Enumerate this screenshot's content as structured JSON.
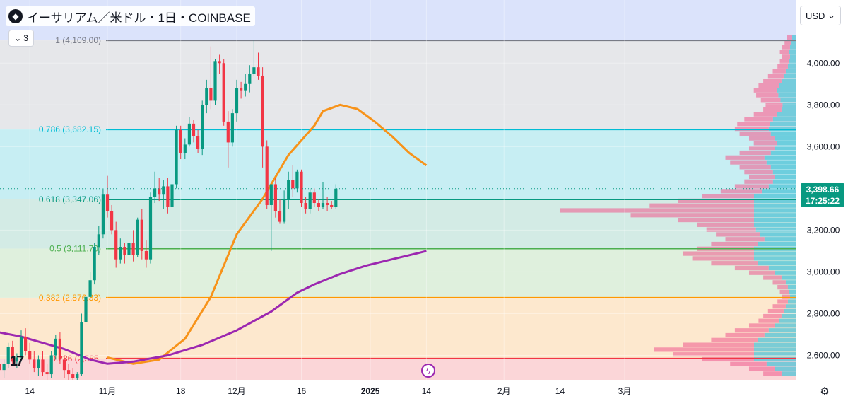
{
  "header": {
    "title": "イーサリアム／米ドル・1日・COINBASE",
    "indicator_count": "3",
    "currency": "USD"
  },
  "price_tag": {
    "price": "3,398.66",
    "countdown": "17:25:22",
    "color": "#089981"
  },
  "icons": {
    "logo": "tradingview-logo",
    "flash": "flash-icon",
    "settings": "gear-icon",
    "eth": "ethereum-icon"
  },
  "colors": {
    "up": "#089981",
    "down": "#f23645",
    "ema_fast": "#f7931a",
    "ema_slow": "#9c27b0"
  },
  "chart_data": {
    "type": "candlestick",
    "y_axis": {
      "range": [
        2500,
        4150
      ],
      "ticks": [
        {
          "value": 4000,
          "label": "4,000.00"
        },
        {
          "value": 3800,
          "label": "3,800.00"
        },
        {
          "value": 3600,
          "label": "3,600.00"
        },
        {
          "value": 3200,
          "label": "3,200.00"
        },
        {
          "value": 3000,
          "label": "3,000.00"
        },
        {
          "value": 2800,
          "label": "2,800.00"
        },
        {
          "value": 2600,
          "label": "2,600.00"
        }
      ]
    },
    "x_axis": {
      "ticks": [
        {
          "day": -18,
          "label": "14"
        },
        {
          "day": 0,
          "label": "11月"
        },
        {
          "day": 17,
          "label": "18"
        },
        {
          "day": 30,
          "label": "12月"
        },
        {
          "day": 45,
          "label": "16"
        },
        {
          "day": 61,
          "label": "2025",
          "bold": true
        },
        {
          "day": 74,
          "label": "14"
        },
        {
          "day": 92,
          "label": "2月"
        },
        {
          "day": 105,
          "label": "14"
        },
        {
          "day": 120,
          "label": "3月"
        }
      ],
      "last_day": 134
    },
    "fibonacci": [
      {
        "ratio": "1",
        "label": "1 (4,109.00)",
        "value": 4109,
        "color": "#787b86",
        "fill": "#e6e7ea"
      },
      {
        "ratio": "0.786",
        "label": "0.786 (3,682.15)",
        "value": 3682.15,
        "color": "#00bcd4",
        "fill": "#c7eef3"
      },
      {
        "ratio": "0.618",
        "label": "0.618 (3,347.06)",
        "value": 3347.06,
        "color": "#089981",
        "fill": "#d3ebe5"
      },
      {
        "ratio": "0.5",
        "label": "0.5 (3,111.70)",
        "value": 3111.7,
        "color": "#4caf50",
        "fill": "#dff0dd"
      },
      {
        "ratio": "0.382",
        "label": "0.382 (2,876.33)",
        "value": 2876.33,
        "color": "#ff9800",
        "fill": "#fde8ce"
      },
      {
        "ratio": "0.236",
        "label": "0.236 (2,585.",
        "value": 2585,
        "color": "#f23645",
        "fill": "#fbd6d8"
      }
    ],
    "series": [
      {
        "name": "ETH/USD",
        "candles": [
          [
            2580,
            2620,
            2520,
            2560
          ],
          [
            2560,
            2600,
            2510,
            2530
          ],
          [
            2530,
            2580,
            2490,
            2560
          ],
          [
            2560,
            2660,
            2540,
            2640
          ],
          [
            2640,
            2670,
            2550,
            2570
          ],
          [
            2570,
            2610,
            2540,
            2590
          ],
          [
            2590,
            2720,
            2570,
            2690
          ],
          [
            2690,
            2730,
            2600,
            2620
          ],
          [
            2620,
            2660,
            2560,
            2580
          ],
          [
            2580,
            2620,
            2520,
            2540
          ],
          [
            2540,
            2600,
            2500,
            2580
          ],
          [
            2580,
            2620,
            2500,
            2520
          ],
          [
            2520,
            2560,
            2470,
            2510
          ],
          [
            2510,
            2620,
            2490,
            2600
          ],
          [
            2600,
            2700,
            2580,
            2680
          ],
          [
            2680,
            2710,
            2560,
            2580
          ],
          [
            2580,
            2600,
            2490,
            2530
          ],
          [
            2530,
            2560,
            2480,
            2510
          ],
          [
            2510,
            2540,
            2440,
            2490
          ],
          [
            2490,
            2520,
            2470,
            2510
          ],
          [
            2510,
            2800,
            2500,
            2760
          ],
          [
            2760,
            2900,
            2740,
            2880
          ],
          [
            2880,
            3000,
            2860,
            2960
          ],
          [
            2960,
            3140,
            2940,
            3120
          ],
          [
            3120,
            3220,
            3080,
            3180
          ],
          [
            3180,
            3400,
            3160,
            3370
          ],
          [
            3370,
            3460,
            3260,
            3290
          ],
          [
            3290,
            3320,
            3180,
            3200
          ],
          [
            3200,
            3240,
            3020,
            3060
          ],
          [
            3060,
            3160,
            3040,
            3120
          ],
          [
            3120,
            3140,
            3040,
            3080
          ],
          [
            3080,
            3180,
            3060,
            3140
          ],
          [
            3140,
            3200,
            3050,
            3080
          ],
          [
            3080,
            3260,
            3070,
            3250
          ],
          [
            3250,
            3300,
            3060,
            3100
          ],
          [
            3100,
            3150,
            3020,
            3060
          ],
          [
            3060,
            3380,
            3040,
            3360
          ],
          [
            3360,
            3480,
            3330,
            3400
          ],
          [
            3400,
            3450,
            3340,
            3370
          ],
          [
            3370,
            3440,
            3300,
            3410
          ],
          [
            3410,
            3450,
            3280,
            3310
          ],
          [
            3310,
            3440,
            3250,
            3420
          ],
          [
            3420,
            3700,
            3400,
            3680
          ],
          [
            3680,
            3700,
            3540,
            3570
          ],
          [
            3570,
            3640,
            3540,
            3610
          ],
          [
            3610,
            3740,
            3600,
            3710
          ],
          [
            3710,
            3730,
            3620,
            3650
          ],
          [
            3650,
            3680,
            3570,
            3590
          ],
          [
            3590,
            3820,
            3560,
            3800
          ],
          [
            3800,
            3920,
            3760,
            3880
          ],
          [
            3880,
            4080,
            3780,
            3820
          ],
          [
            3820,
            4020,
            3800,
            4010
          ],
          [
            4010,
            4040,
            3950,
            4000
          ],
          [
            4000,
            4020,
            3700,
            3720
          ],
          [
            3720,
            3770,
            3500,
            3620
          ],
          [
            3620,
            3780,
            3600,
            3760
          ],
          [
            3760,
            3920,
            3720,
            3880
          ],
          [
            3880,
            3910,
            3830,
            3870
          ],
          [
            3870,
            3950,
            3840,
            3900
          ],
          [
            3900,
            3990,
            3860,
            3950
          ],
          [
            3950,
            4109,
            3940,
            3980
          ],
          [
            3980,
            4050,
            3920,
            3940
          ],
          [
            3940,
            3980,
            3500,
            3600
          ],
          [
            3600,
            3630,
            3300,
            3320
          ],
          [
            3320,
            3420,
            3100,
            3420
          ],
          [
            3420,
            3450,
            3260,
            3290
          ],
          [
            3290,
            3350,
            3230,
            3240
          ],
          [
            3240,
            3390,
            3230,
            3350
          ],
          [
            3350,
            3480,
            3300,
            3440
          ],
          [
            3440,
            3510,
            3360,
            3400
          ],
          [
            3400,
            3490,
            3380,
            3480
          ],
          [
            3480,
            3490,
            3310,
            3330
          ],
          [
            3330,
            3360,
            3280,
            3300
          ],
          [
            3300,
            3400,
            3280,
            3380
          ],
          [
            3380,
            3400,
            3310,
            3330
          ],
          [
            3330,
            3350,
            3290,
            3310
          ],
          [
            3310,
            3430,
            3300,
            3330
          ],
          [
            3330,
            3360,
            3290,
            3320
          ],
          [
            3320,
            3340,
            3300,
            3310
          ],
          [
            3310,
            3420,
            3300,
            3398.66
          ]
        ]
      },
      {
        "name": "EMA fast",
        "values": [
          [
            0,
            2590
          ],
          [
            6,
            2560
          ],
          [
            12,
            2580
          ],
          [
            18,
            2680
          ],
          [
            24,
            2880
          ],
          [
            30,
            3180
          ],
          [
            36,
            3350
          ],
          [
            42,
            3560
          ],
          [
            48,
            3700
          ],
          [
            50,
            3770
          ],
          [
            54,
            3800
          ],
          [
            58,
            3780
          ],
          [
            62,
            3720
          ],
          [
            66,
            3650
          ],
          [
            70,
            3570
          ],
          [
            74,
            3510
          ]
        ]
      },
      {
        "name": "EMA slow",
        "values": [
          [
            -30,
            2730
          ],
          [
            -20,
            2690
          ],
          [
            -10,
            2630
          ],
          [
            -4,
            2580
          ],
          [
            0,
            2560
          ],
          [
            6,
            2570
          ],
          [
            14,
            2600
          ],
          [
            22,
            2650
          ],
          [
            30,
            2720
          ],
          [
            38,
            2810
          ],
          [
            44,
            2900
          ],
          [
            48,
            2940
          ],
          [
            54,
            2990
          ],
          [
            60,
            3030
          ],
          [
            66,
            3060
          ],
          [
            72,
            3090
          ],
          [
            74,
            3100
          ]
        ]
      }
    ],
    "volume_profile": {
      "poc_price": 3347,
      "values": [
        0.04,
        0.05,
        0.06,
        0.07,
        0.06,
        0.07,
        0.08,
        0.1,
        0.12,
        0.14,
        0.16,
        0.18,
        0.17,
        0.15,
        0.13,
        0.14,
        0.18,
        0.22,
        0.25,
        0.26,
        0.24,
        0.2,
        0.18,
        0.2,
        0.24,
        0.3,
        0.28,
        0.24,
        0.22,
        0.2,
        0.22,
        0.26,
        0.32,
        0.4,
        0.5,
        0.62,
        1.0,
        0.7,
        0.5,
        0.42,
        0.38,
        0.34,
        0.3,
        0.36,
        0.42,
        0.48,
        0.44,
        0.36,
        0.26,
        0.2,
        0.14,
        0.1,
        0.08,
        0.07,
        0.06,
        0.08,
        0.1,
        0.12,
        0.14,
        0.16,
        0.2,
        0.26,
        0.3,
        0.36,
        0.48,
        0.6,
        0.52,
        0.4,
        0.28,
        0.2,
        0.14
      ]
    }
  }
}
